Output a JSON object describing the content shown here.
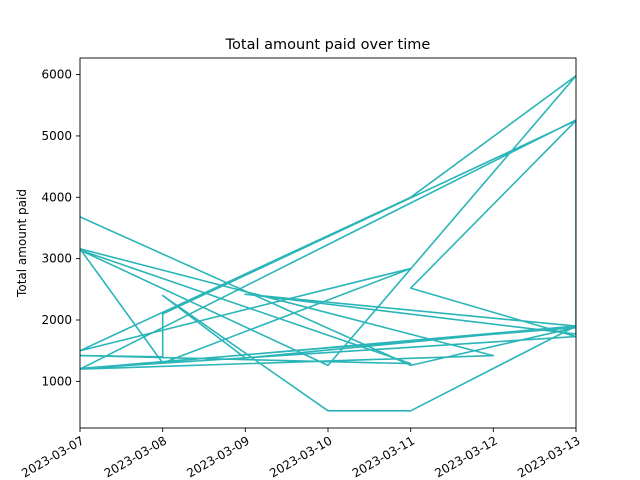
{
  "chart_data": {
    "type": "line",
    "title": "Total amount paid over time",
    "xlabel": "",
    "ylabel": "Total amount paid",
    "x_ticks": [
      "2023-03-07",
      "2023-03-08",
      "2023-03-09",
      "2023-03-10",
      "2023-03-11",
      "2023-03-12",
      "2023-03-13"
    ],
    "y_ticks": [
      1000,
      2000,
      3000,
      4000,
      5000,
      6000
    ],
    "xlim": [
      "2023-03-07",
      "2023-03-13"
    ],
    "ylim": [
      240,
      6270
    ],
    "grid": false,
    "series": [
      {
        "color": "#2bb5b8",
        "points": [
          {
            "x": "2023-03-07",
            "y": 3680
          },
          {
            "x": "2023-03-11",
            "y": 1260
          },
          {
            "x": "2023-03-13",
            "y": 1880
          },
          {
            "x": "2023-03-07",
            "y": 1210
          },
          {
            "x": "2023-03-13",
            "y": 1730
          },
          {
            "x": "2023-03-11",
            "y": 2520
          },
          {
            "x": "2023-03-13",
            "y": 5250
          },
          {
            "x": "2023-03-08",
            "y": 2100
          },
          {
            "x": "2023-03-08",
            "y": 1400
          },
          {
            "x": "2023-03-07",
            "y": 1420
          },
          {
            "x": "2023-03-11",
            "y": 1290
          },
          {
            "x": "2023-03-07",
            "y": 3140
          },
          {
            "x": "2023-03-10",
            "y": 1260
          },
          {
            "x": "2023-03-13",
            "y": 5980
          },
          {
            "x": "2023-03-11",
            "y": 4000
          },
          {
            "x": "2023-03-07",
            "y": 1500
          },
          {
            "x": "2023-03-11",
            "y": 2840
          },
          {
            "x": "2023-03-08",
            "y": 1300
          },
          {
            "x": "2023-03-07",
            "y": 3160
          },
          {
            "x": "2023-03-12",
            "y": 1420
          },
          {
            "x": "2023-03-07",
            "y": 1200
          },
          {
            "x": "2023-03-13",
            "y": 1900
          },
          {
            "x": "2023-03-09",
            "y": 1380
          },
          {
            "x": "2023-03-08",
            "y": 2400
          },
          {
            "x": "2023-03-10",
            "y": 520
          },
          {
            "x": "2023-03-11",
            "y": 520
          },
          {
            "x": "2023-03-13",
            "y": 1900
          },
          {
            "x": "2023-03-09",
            "y": 2420
          },
          {
            "x": "2023-03-13",
            "y": 1770
          },
          {
            "x": "2023-03-13",
            "y": 5260
          },
          {
            "x": "2023-03-07",
            "y": 1200
          }
        ]
      }
    ]
  }
}
